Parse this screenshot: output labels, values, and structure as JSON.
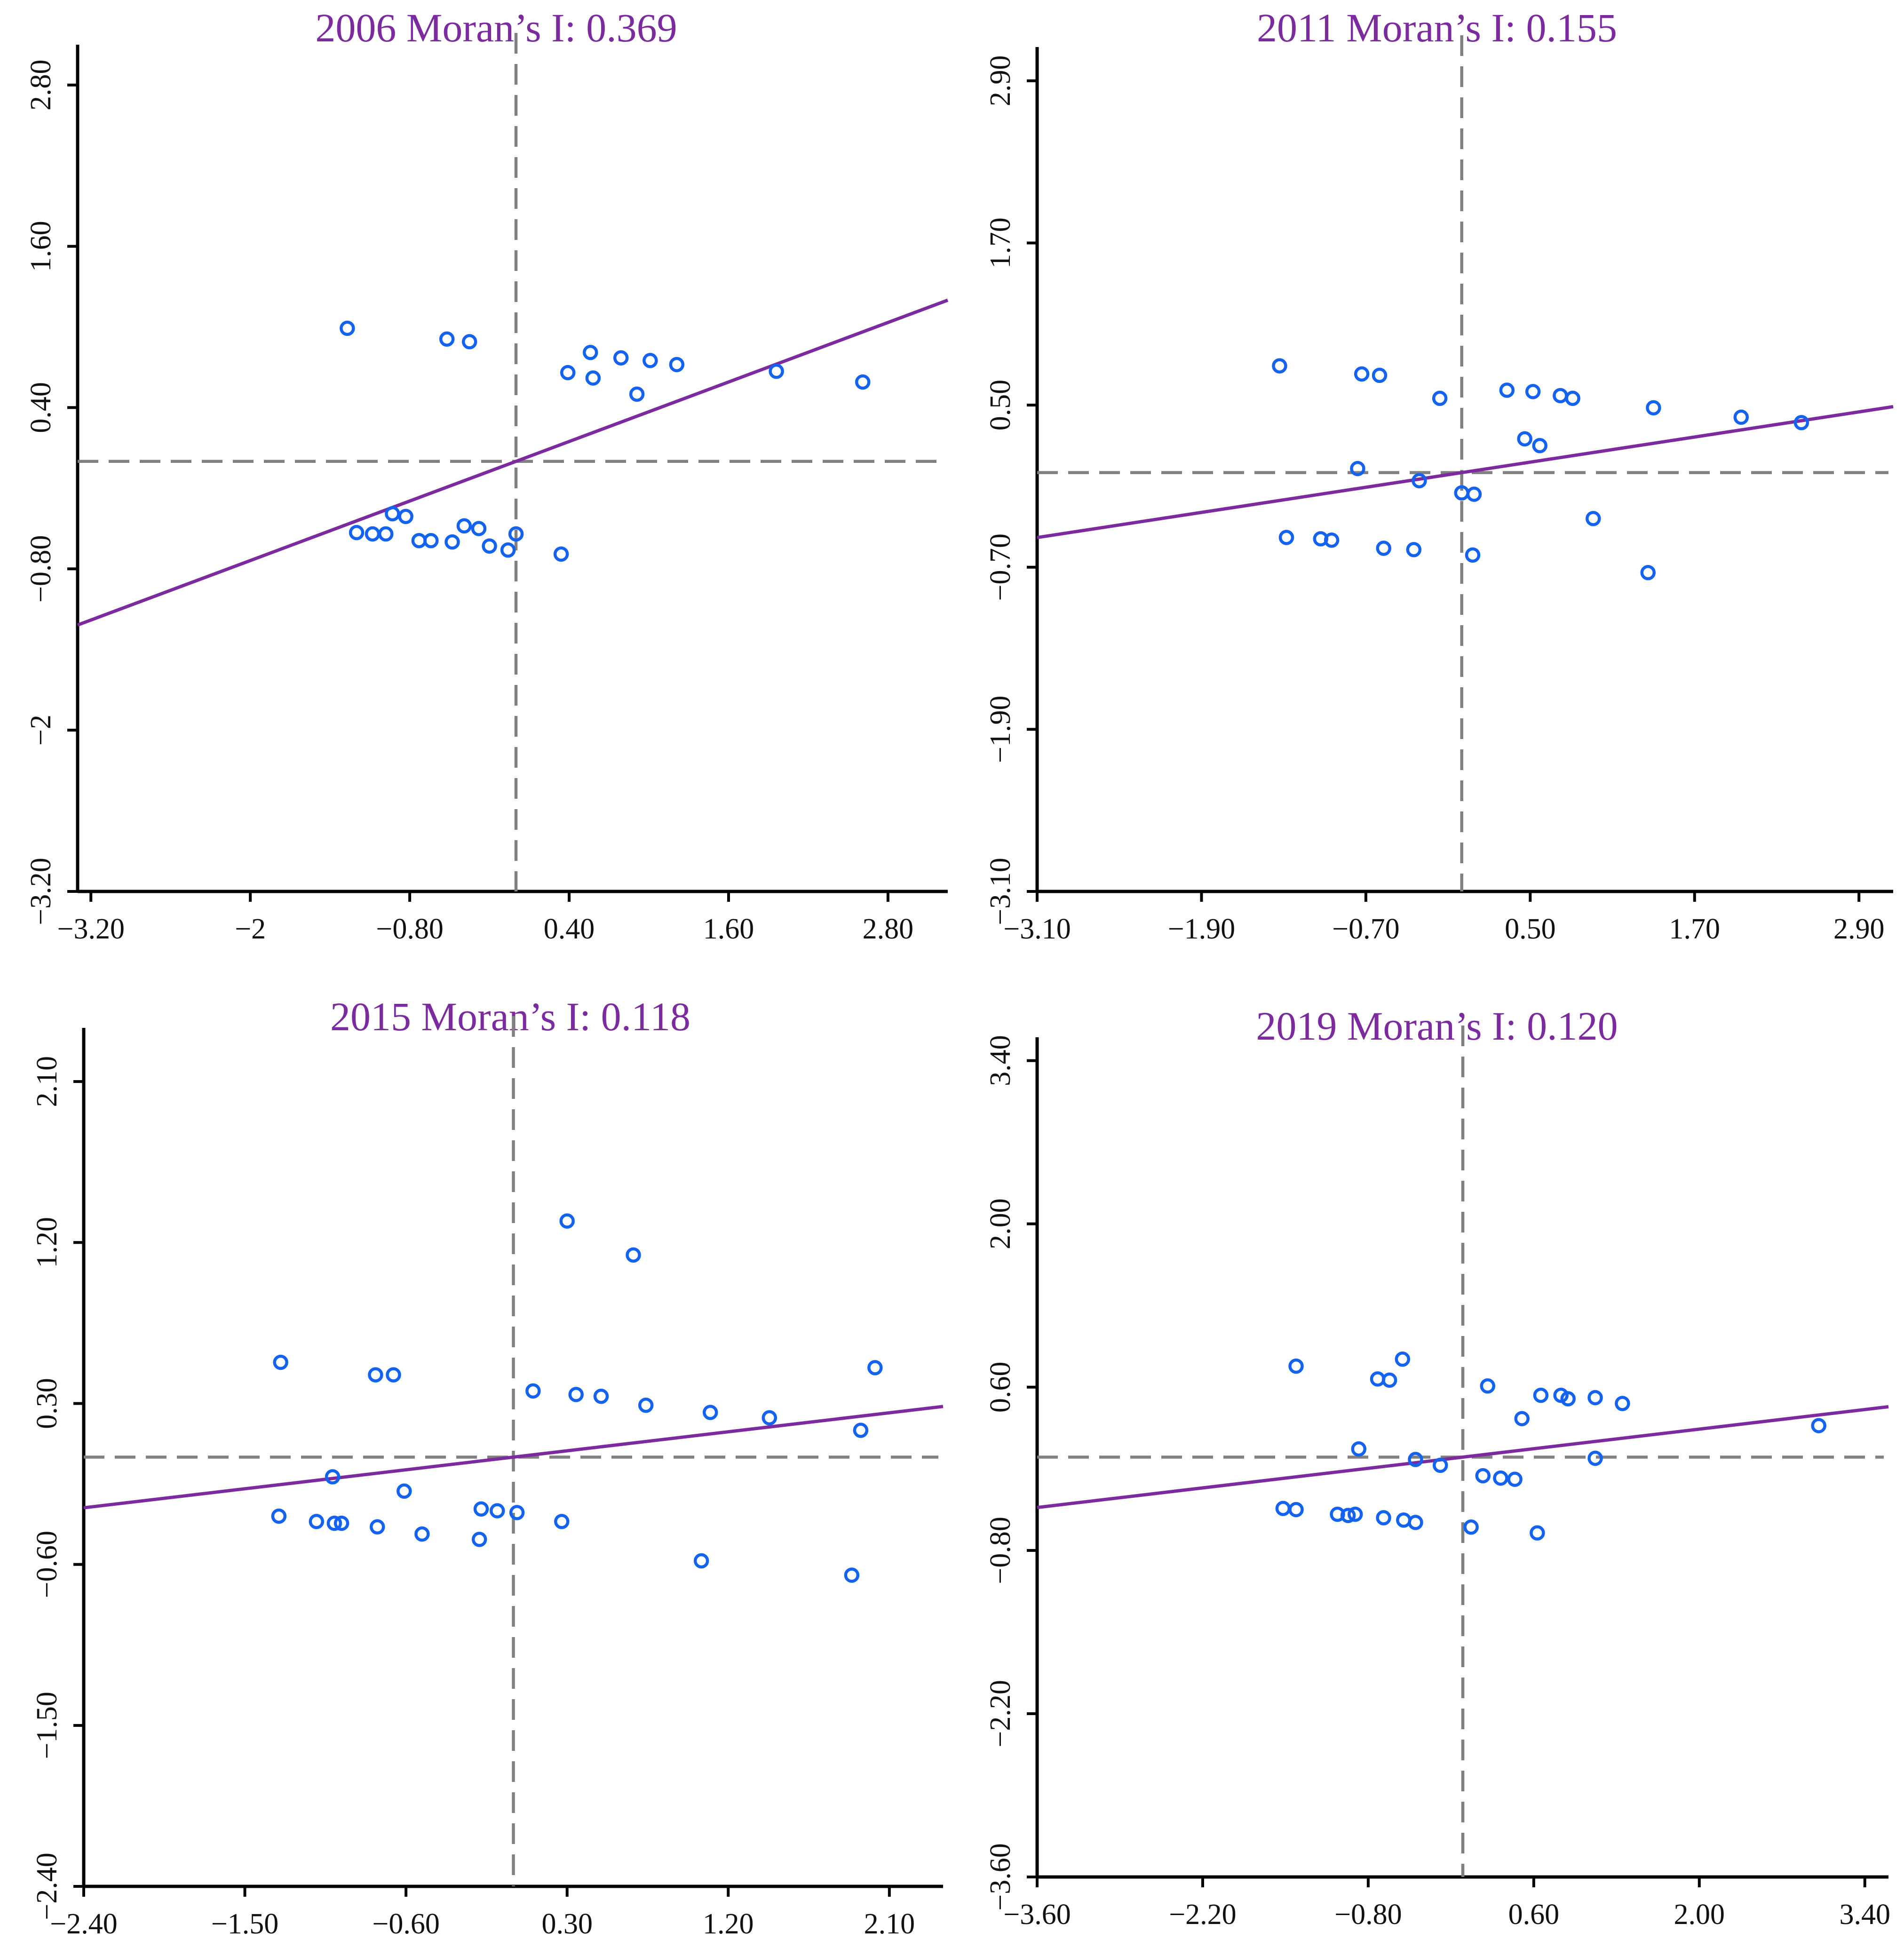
{
  "chart_data": [
    {
      "type": "scatter",
      "title": "2006 Moran’s I: 0.369",
      "moran_i": 0.369,
      "xlabel": "",
      "ylabel": "",
      "xlim": [
        -3.3,
        3.25
      ],
      "ylim": [
        -3.2,
        3.1
      ],
      "xticks": [
        -3.2,
        -2,
        -0.8,
        0.4,
        1.6,
        2.8
      ],
      "yticks": [
        -3.2,
        -2,
        -0.8,
        0.4,
        1.6,
        2.8
      ],
      "xtick_labels": [
        "−3.20",
        "−2",
        "−0.80",
        "0.40",
        "1.60",
        "2.80"
      ],
      "ytick_labels": [
        "−3.20",
        "−2",
        "−0.80",
        "0.40",
        "1.60",
        "2.80"
      ],
      "reference_lines": {
        "x": 0.0,
        "y": 0.0
      },
      "fit_line": {
        "slope": 0.369,
        "intercept": 0.0
      },
      "points": [
        [
          -1.27,
          0.99
        ],
        [
          -0.52,
          0.91
        ],
        [
          -0.35,
          0.89
        ],
        [
          0.39,
          0.66
        ],
        [
          0.56,
          0.81
        ],
        [
          0.58,
          0.62
        ],
        [
          0.79,
          0.77
        ],
        [
          0.91,
          0.5
        ],
        [
          1.01,
          0.75
        ],
        [
          1.21,
          0.72
        ],
        [
          1.96,
          0.67
        ],
        [
          2.61,
          0.59
        ],
        [
          -0.93,
          -0.39
        ],
        [
          -0.83,
          -0.41
        ],
        [
          -1.2,
          -0.53
        ],
        [
          -1.08,
          -0.54
        ],
        [
          -0.98,
          -0.54
        ],
        [
          -0.73,
          -0.59
        ],
        [
          -0.64,
          -0.59
        ],
        [
          -0.48,
          -0.6
        ],
        [
          -0.39,
          -0.48
        ],
        [
          -0.28,
          -0.5
        ],
        [
          -0.2,
          -0.63
        ],
        [
          -0.06,
          -0.66
        ],
        [
          0.0,
          -0.54
        ],
        [
          0.34,
          -0.69
        ]
      ]
    },
    {
      "type": "scatter",
      "title": "2011 Moran’s I: 0.155",
      "moran_i": 0.155,
      "xlabel": "",
      "ylabel": "",
      "xlim": [
        -3.1,
        3.15
      ],
      "ylim": [
        -3.1,
        3.15
      ],
      "xticks": [
        -3.1,
        -1.9,
        -0.7,
        0.5,
        1.7,
        2.9
      ],
      "yticks": [
        -3.1,
        -1.9,
        -0.7,
        0.5,
        1.7,
        2.9
      ],
      "xtick_labels": [
        "−3.10",
        "−1.90",
        "−0.70",
        "0.50",
        "1.70",
        "2.90"
      ],
      "ytick_labels": [
        "−3.10",
        "−1.90",
        "−0.70",
        "0.50",
        "1.70",
        "2.90"
      ],
      "reference_lines": {
        "x": 0.0,
        "y": 0.0
      },
      "fit_line": {
        "slope": 0.155,
        "intercept": 0.0
      },
      "points": [
        [
          -1.33,
          0.79
        ],
        [
          -0.73,
          0.73
        ],
        [
          -0.6,
          0.72
        ],
        [
          -0.16,
          0.55
        ],
        [
          0.33,
          0.61
        ],
        [
          0.52,
          0.6
        ],
        [
          0.72,
          0.57
        ],
        [
          0.81,
          0.55
        ],
        [
          1.4,
          0.48
        ],
        [
          2.04,
          0.41
        ],
        [
          2.48,
          0.37
        ],
        [
          0.46,
          0.25
        ],
        [
          0.57,
          0.2
        ],
        [
          -0.76,
          0.03
        ],
        [
          -0.31,
          -0.06
        ],
        [
          0.0,
          -0.15
        ],
        [
          0.09,
          -0.16
        ],
        [
          0.96,
          -0.34
        ],
        [
          -1.28,
          -0.48
        ],
        [
          -1.03,
          -0.49
        ],
        [
          -0.95,
          -0.5
        ],
        [
          -0.57,
          -0.56
        ],
        [
          -0.35,
          -0.57
        ],
        [
          0.08,
          -0.61
        ],
        [
          1.36,
          -0.74
        ]
      ]
    },
    {
      "type": "scatter",
      "title": "2015 Moran’s I: 0.118",
      "moran_i": 0.118,
      "xlabel": "",
      "ylabel": "",
      "xlim": [
        -2.4,
        2.4
      ],
      "ylim": [
        -2.4,
        2.4
      ],
      "xticks": [
        -2.4,
        -1.5,
        -0.6,
        0.3,
        1.2,
        2.1
      ],
      "yticks": [
        -2.4,
        -1.5,
        -0.6,
        0.3,
        1.2,
        2.1
      ],
      "xtick_labels": [
        "−2.40",
        "−1.50",
        "−0.60",
        "0.30",
        "1.20",
        "2.10"
      ],
      "ytick_labels": [
        "−2.40",
        "−1.50",
        "−0.60",
        "0.30",
        "1.20",
        "2.10"
      ],
      "reference_lines": {
        "x": 0.0,
        "y": 0.0
      },
      "fit_line": {
        "slope": 0.118,
        "intercept": 0.0
      },
      "points": [
        [
          -1.3,
          0.53
        ],
        [
          -0.77,
          0.46
        ],
        [
          -0.67,
          0.46
        ],
        [
          0.3,
          1.32
        ],
        [
          0.67,
          1.13
        ],
        [
          0.11,
          0.37
        ],
        [
          0.35,
          0.35
        ],
        [
          0.49,
          0.34
        ],
        [
          0.74,
          0.29
        ],
        [
          1.1,
          0.25
        ],
        [
          1.43,
          0.22
        ],
        [
          2.02,
          0.5
        ],
        [
          1.94,
          0.15
        ],
        [
          -1.01,
          -0.11
        ],
        [
          -0.61,
          -0.19
        ],
        [
          -1.31,
          -0.33
        ],
        [
          -1.1,
          -0.36
        ],
        [
          -1.0,
          -0.37
        ],
        [
          -0.96,
          -0.37
        ],
        [
          -0.76,
          -0.39
        ],
        [
          -0.51,
          -0.43
        ],
        [
          -0.18,
          -0.29
        ],
        [
          -0.09,
          -0.3
        ],
        [
          0.02,
          -0.31
        ],
        [
          0.27,
          -0.36
        ],
        [
          -0.19,
          -0.46
        ],
        [
          1.05,
          -0.58
        ],
        [
          1.89,
          -0.66
        ]
      ]
    },
    {
      "type": "scatter",
      "title": "2019 Moran’s I: 0.120",
      "moran_i": 0.12,
      "xlabel": "",
      "ylabel": "",
      "xlim": [
        -3.6,
        3.6
      ],
      "ylim": [
        -3.6,
        3.6
      ],
      "xticks": [
        -3.6,
        -2.2,
        -0.8,
        0.6,
        2.0,
        3.4
      ],
      "yticks": [
        -3.6,
        -2.2,
        -0.8,
        0.6,
        2.0,
        3.4
      ],
      "xtick_labels": [
        "−3.60",
        "−2.20",
        "−0.80",
        "0.60",
        "2.00",
        "3.40"
      ],
      "ytick_labels": [
        "−3.60",
        "−2.20",
        "−0.80",
        "0.60",
        "2.00",
        "3.40"
      ],
      "reference_lines": {
        "x": 0.0,
        "y": 0.0
      },
      "fit_line": {
        "slope": 0.12,
        "intercept": 0.0
      },
      "points": [
        [
          -1.41,
          0.78
        ],
        [
          -0.72,
          0.67
        ],
        [
          -0.62,
          0.66
        ],
        [
          -0.51,
          0.84
        ],
        [
          0.21,
          0.61
        ],
        [
          0.66,
          0.53
        ],
        [
          0.83,
          0.53
        ],
        [
          0.89,
          0.5
        ],
        [
          1.12,
          0.51
        ],
        [
          1.35,
          0.46
        ],
        [
          0.5,
          0.33
        ],
        [
          3.01,
          0.27
        ],
        [
          -0.88,
          0.07
        ],
        [
          -0.4,
          -0.02
        ],
        [
          -0.19,
          -0.07
        ],
        [
          1.12,
          -0.01
        ],
        [
          0.17,
          -0.16
        ],
        [
          0.32,
          -0.18
        ],
        [
          0.44,
          -0.19
        ],
        [
          -1.52,
          -0.44
        ],
        [
          -1.41,
          -0.45
        ],
        [
          -1.06,
          -0.49
        ],
        [
          -0.97,
          -0.5
        ],
        [
          -0.91,
          -0.49
        ],
        [
          -0.67,
          -0.52
        ],
        [
          -0.5,
          -0.54
        ],
        [
          -0.4,
          -0.56
        ],
        [
          0.07,
          -0.6
        ],
        [
          0.63,
          -0.65
        ]
      ]
    }
  ]
}
